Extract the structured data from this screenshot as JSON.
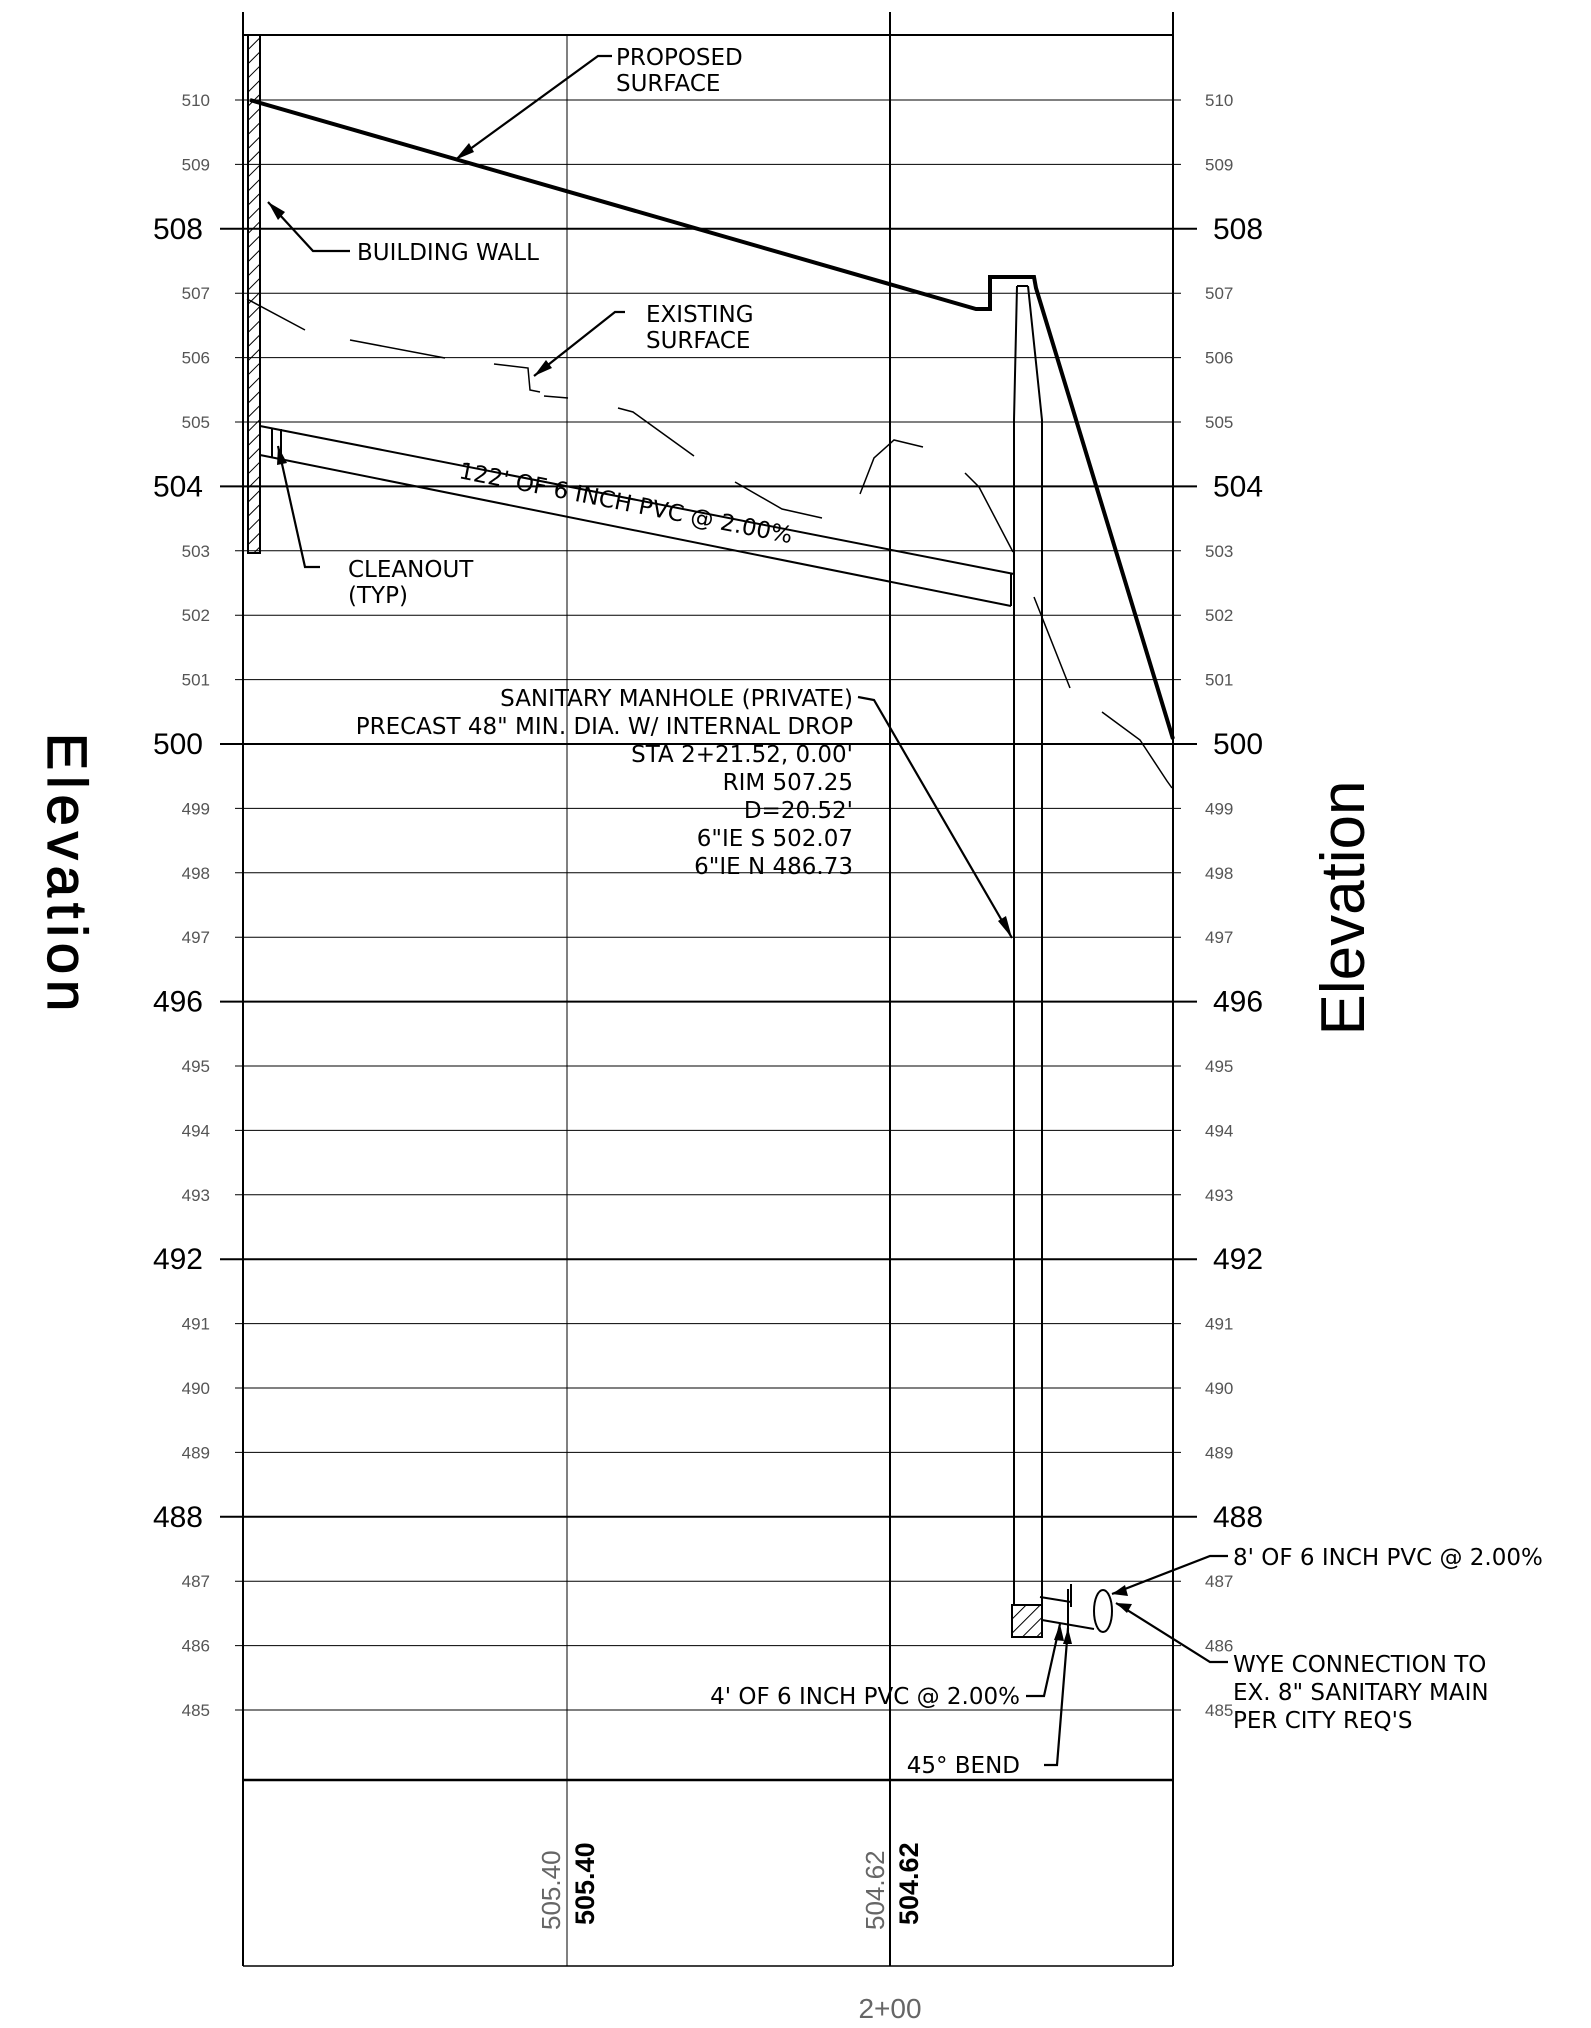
{
  "axis": {
    "left_title": "Elevation",
    "right_title": "Elevation",
    "minor_ticks": [
      "510",
      "509",
      "507",
      "506",
      "505",
      "503",
      "502",
      "501",
      "499",
      "498",
      "497",
      "495",
      "494",
      "493",
      "491",
      "490",
      "489",
      "487",
      "486",
      "485"
    ],
    "major_ticks": [
      "508",
      "504",
      "500",
      "496",
      "492",
      "488"
    ],
    "station_label": "2+00"
  },
  "bottom_band": {
    "existing_1": "505.40",
    "proposed_1": "505.40",
    "existing_2": "504.62",
    "proposed_2": "504.62"
  },
  "labels": {
    "proposed_surface_1": "PROPOSED",
    "proposed_surface_2": "SURFACE",
    "building_wall": "BUILDING WALL",
    "existing_surface_1": "EXISTING",
    "existing_surface_2": "SURFACE",
    "pipe_main": "122' OF 6 INCH PVC @ 2.00%",
    "cleanout_1": "CLEANOUT",
    "cleanout_2": "(TYP)",
    "manhole": [
      "SANITARY MANHOLE (PRIVATE)",
      "PRECAST 48\" MIN. DIA. W/ INTERNAL DROP",
      "STA 2+21.52, 0.00'",
      "RIM 507.25",
      "D=20.52'",
      "6\"IE S 502.07",
      "6\"IE N 486.73"
    ],
    "pipe_8ft": "8' OF 6 INCH PVC @ 2.00%",
    "pipe_4ft": "4' OF 6 INCH PVC @ 2.00%",
    "bend": "45° BEND",
    "wye": [
      "WYE CONNECTION TO",
      "EX. 8\" SANITARY MAIN",
      "PER CITY REQ'S"
    ]
  }
}
